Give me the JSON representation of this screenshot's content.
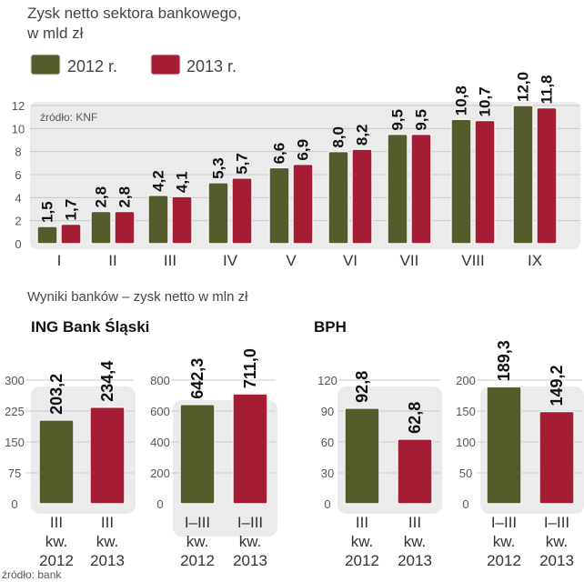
{
  "colors": {
    "y2012": "#565b2b",
    "y2013": "#a51d35",
    "panel": "#ebebeb",
    "grid": "#c8c8c8",
    "text": "#333333"
  },
  "chart_data": [
    {
      "type": "bar",
      "title": "Zysk netto sektora bankowego,",
      "subtitle": "w mld zł",
      "source": "źródło: KNF",
      "categories": [
        "I",
        "II",
        "III",
        "IV",
        "V",
        "VI",
        "VII",
        "VIII",
        "IX"
      ],
      "series": [
        {
          "name": "2012 r.",
          "values": [
            1.5,
            2.8,
            4.2,
            5.3,
            6.6,
            8.0,
            9.5,
            10.8,
            12.0
          ],
          "labels": [
            "1,5",
            "2,8",
            "4,2",
            "5,3",
            "6,6",
            "8,0",
            "9,5",
            "10,8",
            "12,0"
          ]
        },
        {
          "name": "2013 r.",
          "values": [
            1.7,
            2.8,
            4.1,
            5.7,
            6.9,
            8.2,
            9.5,
            10.7,
            11.8
          ],
          "labels": [
            "1,7",
            "2,8",
            "4,1",
            "5,7",
            "6,9",
            "8,2",
            "9,5",
            "10,7",
            "11,8"
          ]
        }
      ],
      "yticks": [
        "0",
        "2",
        "4",
        "6",
        "8",
        "10",
        "12"
      ],
      "ylim": [
        0,
        12
      ],
      "legend": "top-left"
    },
    {
      "section_title": "Wyniki banków – zysk netto w mln zł",
      "source": "źródło: bank",
      "panels": [
        {
          "bank": "ING Bank Śląski",
          "ylim": [
            0,
            300
          ],
          "yticks": [
            "0",
            "75",
            "150",
            "225",
            "300"
          ],
          "categories": [
            [
              "III",
              "kw.",
              "2012"
            ],
            [
              "III",
              "kw.",
              "2013"
            ]
          ],
          "values": [
            203.2,
            234.4
          ],
          "labels": [
            "203,2",
            "234,4"
          ]
        },
        {
          "bank": "",
          "ylim": [
            0,
            800
          ],
          "yticks": [
            "0",
            "200",
            "400",
            "600",
            "800"
          ],
          "categories": [
            [
              "I–III",
              "kw.",
              "2012"
            ],
            [
              "I–III",
              "kw.",
              "2013"
            ]
          ],
          "values": [
            642.3,
            711.0
          ],
          "labels": [
            "642,3",
            "711,0"
          ]
        },
        {
          "bank": "BPH",
          "ylim": [
            0,
            120
          ],
          "yticks": [
            "0",
            "30",
            "60",
            "90",
            "120"
          ],
          "categories": [
            [
              "III",
              "kw.",
              "2012"
            ],
            [
              "III",
              "kw.",
              "2013"
            ]
          ],
          "values": [
            92.8,
            62.8
          ],
          "labels": [
            "92,8",
            "62,8"
          ]
        },
        {
          "bank": "",
          "ylim": [
            0,
            200
          ],
          "yticks": [
            "0",
            "50",
            "100",
            "150",
            "200"
          ],
          "categories": [
            [
              "I–III",
              "kw.",
              "2012"
            ],
            [
              "I–III",
              "kw.",
              "2013"
            ]
          ],
          "values": [
            189.3,
            149.2
          ],
          "labels": [
            "189,3",
            "149,2"
          ]
        }
      ]
    }
  ]
}
